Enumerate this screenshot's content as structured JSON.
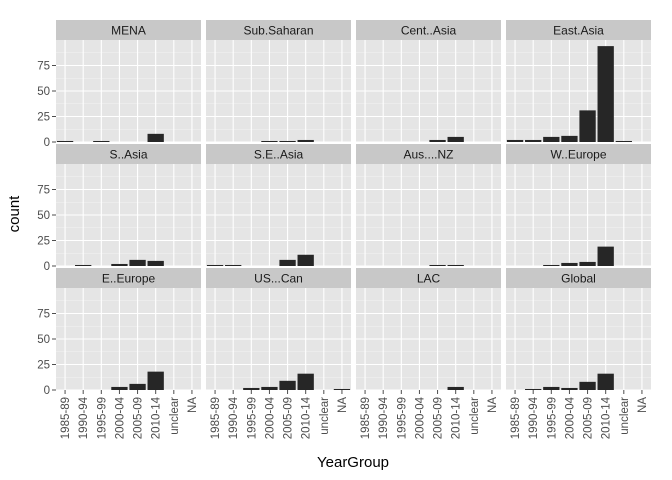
{
  "chart_data": {
    "type": "bar",
    "layout": "facet-grid",
    "xlabel": "YearGroup",
    "ylabel": "count",
    "ylim": [
      0,
      100
    ],
    "y_ticks": [
      0,
      25,
      50,
      75
    ],
    "categories": [
      "1985-89",
      "1990-94",
      "1995-99",
      "2000-04",
      "2005-09",
      "2010-14",
      "unclear",
      "NA"
    ],
    "grid": true,
    "colors": {
      "bar": "#262626",
      "panel": "#e5e5e5",
      "strip": "#c8c8c8",
      "grid_major": "#ffffff",
      "grid_minor": "#f2f2f2"
    },
    "facets": [
      {
        "name": "MENA",
        "values": [
          1,
          0,
          1,
          0,
          0,
          8,
          0,
          0
        ]
      },
      {
        "name": "Sub.Saharan",
        "values": [
          0,
          0,
          0,
          1,
          1,
          2,
          0,
          0
        ]
      },
      {
        "name": "Cent..Asia",
        "values": [
          0,
          0,
          0,
          0,
          2,
          5,
          0,
          0
        ]
      },
      {
        "name": "East.Asia",
        "values": [
          2,
          2,
          5,
          6,
          31,
          94,
          1,
          0
        ]
      },
      {
        "name": "S..Asia",
        "values": [
          0,
          1,
          0,
          2,
          6,
          5,
          0,
          0
        ]
      },
      {
        "name": "S.E..Asia",
        "values": [
          1,
          1,
          0,
          0,
          6,
          11,
          0,
          0
        ]
      },
      {
        "name": "Aus....NZ",
        "values": [
          0,
          0,
          0,
          0,
          1,
          1,
          0,
          0
        ]
      },
      {
        "name": "W..Europe",
        "values": [
          0,
          0,
          1,
          3,
          4,
          19,
          0,
          0
        ]
      },
      {
        "name": "E..Europe",
        "values": [
          0,
          0,
          0,
          3,
          6,
          18,
          0,
          0
        ]
      },
      {
        "name": "US...Can",
        "values": [
          0,
          0,
          2,
          3,
          9,
          16,
          0,
          1
        ]
      },
      {
        "name": "LAC",
        "values": [
          0,
          0,
          0,
          0,
          0,
          3,
          0,
          0
        ]
      },
      {
        "name": "Global",
        "values": [
          0,
          1,
          3,
          2,
          8,
          16,
          0,
          0
        ]
      }
    ]
  }
}
